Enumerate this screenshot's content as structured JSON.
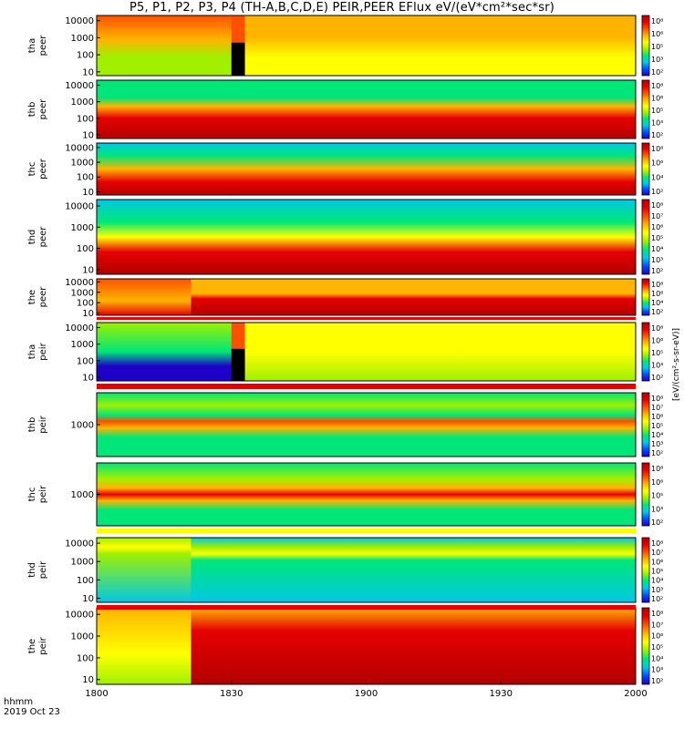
{
  "title": "P5, P1, P2, P3, P4 (TH-A,B,C,D,E) PEIR,PEER EFlux eV/(eV*cm²*sec*sr)",
  "colorbar_label": "[eV/(cm²-s-sr-eV)]",
  "colorbar_ticks": [
    "10⁸",
    "10⁷",
    "10⁶",
    "10⁵",
    "10⁴",
    "10³",
    "10²"
  ],
  "colors": {
    "background": "#ffffff",
    "colormap": [
      "#1e00c8",
      "#0050ff",
      "#00c8e6",
      "#00e678",
      "#a0f000",
      "#ffff00",
      "#ffb400",
      "#ff5000",
      "#e60000",
      "#b40000"
    ],
    "gap_stripe": "#e60000",
    "flag_bar": "#ffff00"
  },
  "time_axis": {
    "label_line1": "hhmm",
    "label_line2": "2019 Oct 23",
    "range": [
      "1800",
      "2000"
    ],
    "ticks": [
      "1800",
      "1830",
      "1900",
      "1930",
      "2000"
    ]
  },
  "chart_data": [
    {
      "type": "heatmap",
      "panel": "tha-peer",
      "ylabel": [
        "tha",
        "peer"
      ],
      "yscale": "log",
      "y_ticks": [
        "10000",
        "1000",
        "100",
        "10"
      ],
      "x_range": [
        "1800",
        "2000"
      ],
      "z_label": "EFlux",
      "z_range": [
        100,
        100000000
      ]
    },
    {
      "type": "heatmap",
      "panel": "thb-peer",
      "ylabel": [
        "thb",
        "peer"
      ],
      "yscale": "log",
      "y_ticks": [
        "10000",
        "1000",
        "100",
        "10"
      ],
      "x_range": [
        "1800",
        "2000"
      ],
      "z_label": "EFlux",
      "z_range": [
        100,
        100000000
      ]
    },
    {
      "type": "heatmap",
      "panel": "thc-peer",
      "ylabel": [
        "thc",
        "peer"
      ],
      "yscale": "log",
      "y_ticks": [
        "10000",
        "1000",
        "100",
        "10"
      ],
      "x_range": [
        "1800",
        "2000"
      ],
      "z_label": "EFlux",
      "z_range": [
        100,
        100000000
      ]
    },
    {
      "type": "heatmap",
      "panel": "thd-peer",
      "ylabel": [
        "thd",
        "peer"
      ],
      "yscale": "log",
      "y_ticks": [
        "10000",
        "1000",
        "100",
        "10"
      ],
      "x_range": [
        "1800",
        "2000"
      ],
      "z_label": "EFlux",
      "z_range": [
        100,
        100000000
      ]
    },
    {
      "type": "heatmap",
      "panel": "the-peer",
      "ylabel": [
        "the",
        "peer"
      ],
      "yscale": "log",
      "y_ticks": [
        "10000",
        "1000",
        "100",
        "10"
      ],
      "x_range": [
        "1800",
        "2000"
      ],
      "z_label": "EFlux",
      "z_range": [
        100,
        100000000
      ]
    },
    {
      "type": "heatmap",
      "panel": "tha-peir",
      "ylabel": [
        "tha",
        "peir"
      ],
      "yscale": "log",
      "y_ticks": [
        "10000",
        "1000",
        "100",
        "10"
      ],
      "x_range": [
        "1800",
        "2000"
      ],
      "z_label": "EFlux",
      "z_range": [
        100,
        100000000
      ]
    },
    {
      "type": "heatmap",
      "panel": "thb-peir",
      "ylabel": [
        "thb",
        "peir"
      ],
      "yscale": "log",
      "y_ticks": [
        "1000"
      ],
      "x_range": [
        "1800",
        "2000"
      ],
      "z_label": "EFlux",
      "z_range": [
        100,
        100000000
      ]
    },
    {
      "type": "heatmap",
      "panel": "thc-peir",
      "ylabel": [
        "thc",
        "peir"
      ],
      "yscale": "log",
      "y_ticks": [
        "1000"
      ],
      "x_range": [
        "1800",
        "2000"
      ],
      "z_label": "EFlux",
      "z_range": [
        100,
        100000000
      ]
    },
    {
      "type": "heatmap",
      "panel": "thd-peir",
      "ylabel": [
        "thd",
        "peir"
      ],
      "yscale": "log",
      "y_ticks": [
        "10000",
        "1000",
        "100",
        "10"
      ],
      "x_range": [
        "1800",
        "2000"
      ],
      "z_label": "EFlux",
      "z_range": [
        100,
        100000000
      ]
    },
    {
      "type": "heatmap",
      "panel": "the-peir",
      "ylabel": [
        "the",
        "peir"
      ],
      "yscale": "log",
      "y_ticks": [
        "10000",
        "1000",
        "100",
        "10"
      ],
      "x_range": [
        "1800",
        "2000"
      ],
      "z_label": "EFlux",
      "z_range": [
        100,
        100000000
      ]
    }
  ]
}
